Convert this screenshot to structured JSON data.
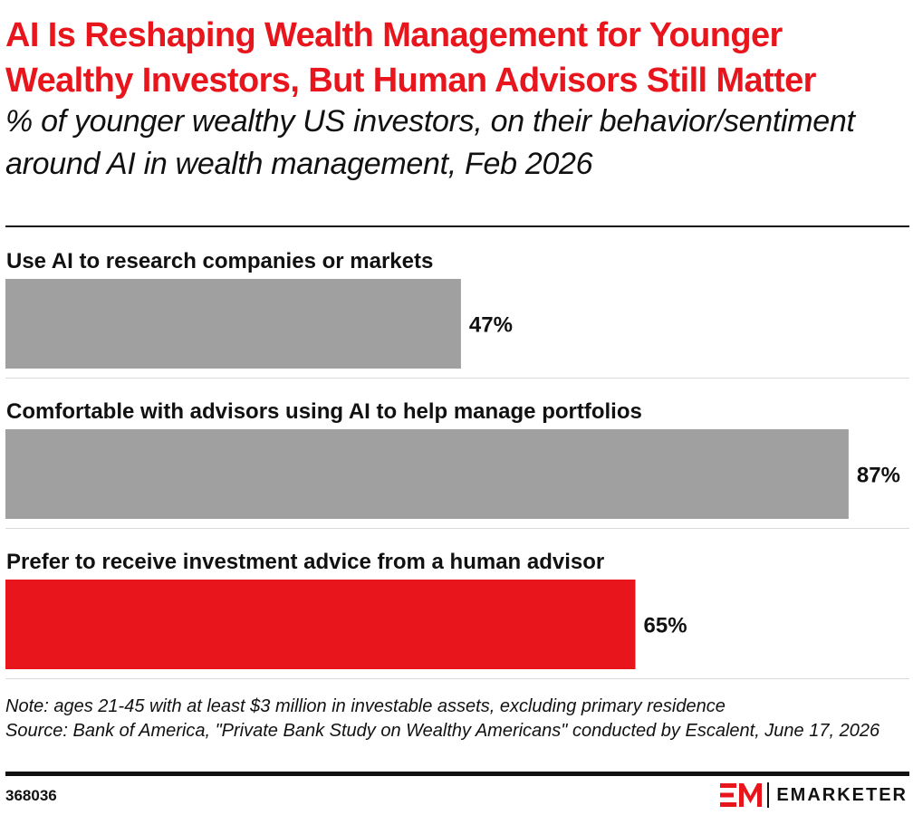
{
  "title": "AI Is Reshaping Wealth Management for Younger Wealthy Investors, But Human Advisors Still Matter",
  "subtitle": "% of younger wealthy US investors, on their behavior/sentiment around AI in wealth management, Feb 2026",
  "note": "Note: ages 21-45 with at least $3 million in investable assets, excluding primary residence",
  "source": "Source: Bank of America, \"Private Bank Study on Wealthy Americans\" conducted by Escalent, June 17, 2026",
  "chart_id": "368036",
  "brand": {
    "name": "EMARKETER",
    "mark_color": "#e8151c"
  },
  "colors": {
    "accent": "#e8151c",
    "bar_gray": "#a0a0a0",
    "bar_red": "#e8151c"
  },
  "chart_data": {
    "type": "bar",
    "orientation": "horizontal",
    "categories": [
      "Use AI to research companies or markets",
      "Comfortable with advisors using AI to help manage portfolios",
      "Prefer to receive investment advice from a human advisor"
    ],
    "values": [
      47,
      87,
      65
    ],
    "value_labels": [
      "47%",
      "87%",
      "65%"
    ],
    "bar_colors": [
      "#a0a0a0",
      "#a0a0a0",
      "#e8151c"
    ],
    "xlim": [
      0,
      100
    ],
    "unit": "%",
    "grid": false,
    "legend": "none"
  }
}
